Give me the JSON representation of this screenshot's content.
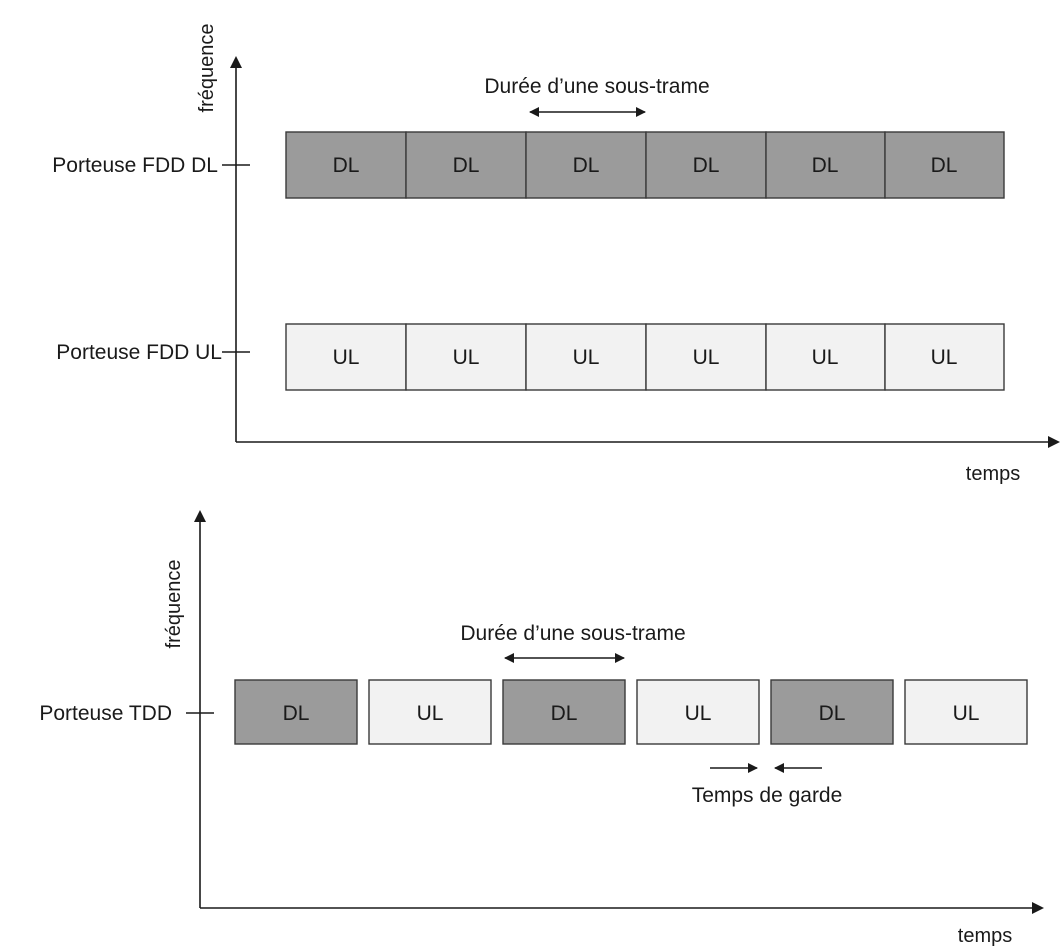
{
  "colors": {
    "dl_fill": "#9b9b9b",
    "ul_fill": "#f2f2f2",
    "stroke": "#3a3a3a",
    "text": "#1a1a1a"
  },
  "fdd": {
    "y_axis_label": "fréquence",
    "x_axis_label": "temps",
    "dl_row_label": "Porteuse FDD DL",
    "ul_row_label": "Porteuse FDD UL",
    "subframe_label": "Durée d’une sous-trame",
    "dl_cells": [
      "DL",
      "DL",
      "DL",
      "DL",
      "DL",
      "DL"
    ],
    "ul_cells": [
      "UL",
      "UL",
      "UL",
      "UL",
      "UL",
      "UL"
    ]
  },
  "tdd": {
    "y_axis_label": "fréquence",
    "x_axis_label": "temps",
    "row_label": "Porteuse TDD",
    "subframe_label": "Durée d’une sous-trame",
    "guard_label": "Temps de garde",
    "cells": [
      "DL",
      "UL",
      "DL",
      "UL",
      "DL",
      "UL"
    ]
  }
}
